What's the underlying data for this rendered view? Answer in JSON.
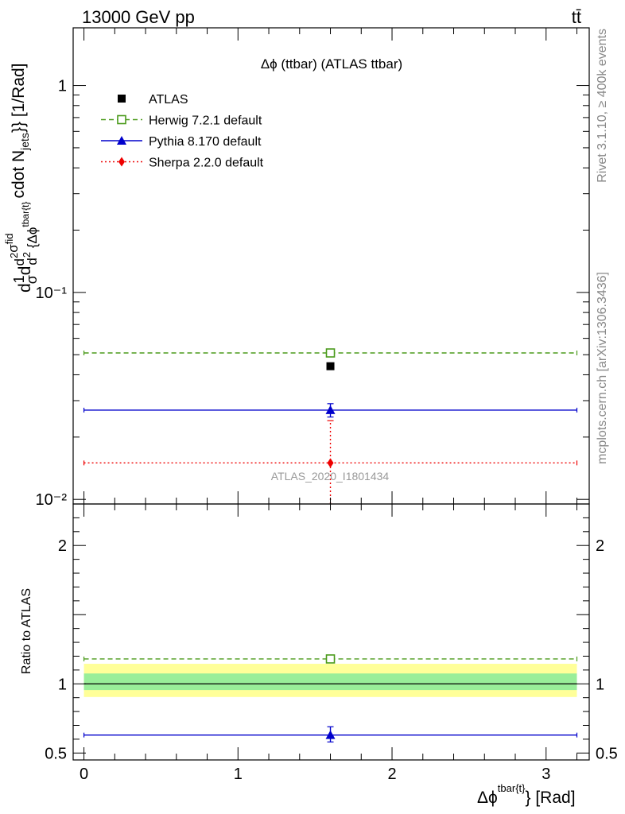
{
  "header": {
    "left": "13000 GeV pp",
    "right": "tt̄"
  },
  "side": {
    "top": "Rivet 3.1.10, ≥ 400k events",
    "bottom": "mcplots.cern.ch [arXiv:1306.3436]"
  },
  "colors": {
    "atlas": "#000000",
    "herwig": "#4a9a1a",
    "pythia": "#0000cc",
    "sherpa": "#ee0000",
    "band_inner": "#99ee99",
    "band_outer": "#ffff99"
  },
  "chart_data": [
    {
      "type": "scatter",
      "panel": "main",
      "title": "Δϕ (ttbar) (ATLAS ttbar)",
      "watermark": "ATLAS_2020_I1801434",
      "ylabel": "d1σdd²σfidd²{Δϕtbar{t}cdot Njets}} [1/Rad]",
      "yscale": "log",
      "ylim": [
        0.0095,
        1.9
      ],
      "xlim": [
        -0.07,
        3.28
      ],
      "yticks": [
        {
          "value": 1,
          "label": "1"
        },
        {
          "value": 0.1,
          "label": "10⁻¹"
        },
        {
          "value": 0.01,
          "label": "10⁻²"
        }
      ],
      "legend_position": "top-left",
      "series": [
        {
          "name": "ATLAS",
          "key": "atlas",
          "marker": "filled-square",
          "x": [
            1.6
          ],
          "y": [
            0.044
          ],
          "xerr": [
            0,
            0
          ],
          "yerr": [
            null,
            null
          ]
        },
        {
          "name": "Herwig 7.2.1 default",
          "key": "herwig",
          "marker": "open-square",
          "linestyle": "dashed",
          "x": [
            1.6
          ],
          "y": [
            0.051
          ],
          "xerr": [
            0,
            3.2
          ],
          "yerr": [
            null,
            null
          ]
        },
        {
          "name": "Pythia 8.170 default",
          "key": "pythia",
          "marker": "triangle",
          "linestyle": "solid",
          "x": [
            1.6
          ],
          "y": [
            0.027
          ],
          "xerr": [
            0,
            3.2
          ],
          "yerr": [
            0.025,
            0.029
          ]
        },
        {
          "name": "Sherpa 2.2.0 default",
          "key": "sherpa",
          "marker": "diamond",
          "linestyle": "dotted",
          "x": [
            1.6
          ],
          "y": [
            0.015
          ],
          "xerr": [
            0,
            3.2
          ],
          "yerr": [
            0.0095,
            0.024
          ]
        }
      ]
    },
    {
      "type": "scatter",
      "panel": "ratio",
      "ylabel": "Ratio to ATLAS",
      "xlabel": "Δϕtbar{t}} [Rad]",
      "ylim": [
        0.45,
        2.3
      ],
      "xlim": [
        -0.07,
        3.28
      ],
      "xticks": [
        {
          "value": 0,
          "label": "0"
        },
        {
          "value": 1,
          "label": "1"
        },
        {
          "value": 2,
          "label": "2"
        },
        {
          "value": 3,
          "label": "3"
        }
      ],
      "yticks": [
        {
          "value": 0.5,
          "label": "0.5"
        },
        {
          "value": 1,
          "label": "1"
        },
        {
          "value": 2,
          "label": "2"
        }
      ],
      "bands": [
        {
          "key": "band_outer",
          "x": [
            0,
            3.2
          ],
          "y": [
            0.905,
            1.145
          ]
        },
        {
          "key": "band_inner",
          "x": [
            0,
            3.2
          ],
          "y": [
            0.955,
            1.075
          ]
        }
      ],
      "reference": 1,
      "series": [
        {
          "key": "herwig",
          "marker": "open-square",
          "linestyle": "dashed",
          "x": [
            1.6
          ],
          "y": [
            1.18
          ],
          "xerr": [
            0,
            3.2
          ],
          "yerr": [
            null,
            null
          ]
        },
        {
          "key": "pythia",
          "marker": "triangle",
          "linestyle": "solid",
          "x": [
            1.6
          ],
          "y": [
            0.63
          ],
          "xerr": [
            0,
            3.2
          ],
          "yerr": [
            0.58,
            0.69
          ]
        }
      ]
    }
  ]
}
